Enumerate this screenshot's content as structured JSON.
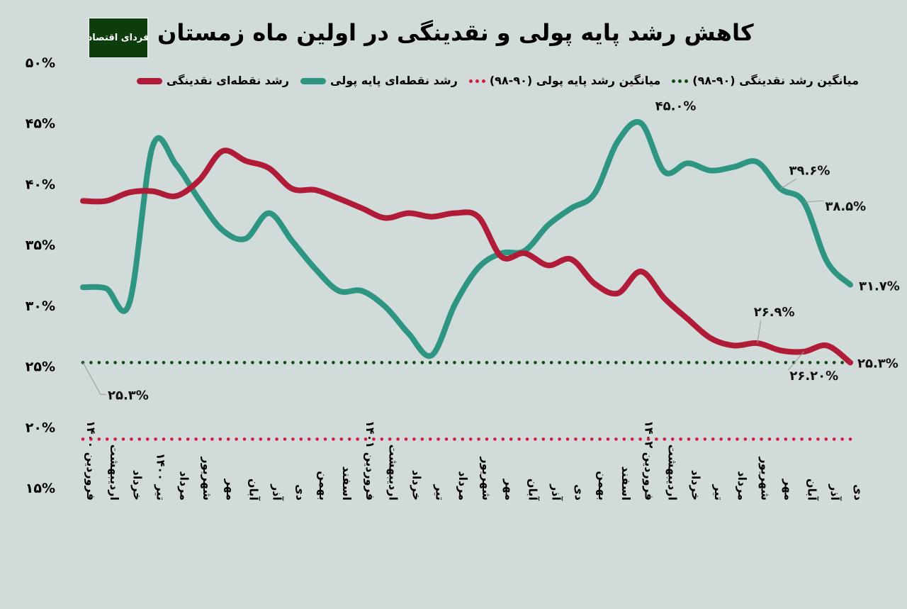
{
  "title": "کاهش رشد پایه پولی و نقدینگی در اولین ماه زمستان",
  "logo_text": "فردای اقتصاد",
  "legend": [
    {
      "label": "میانگین رشد نقدینگی (۹۰-۹۸)",
      "style": "dotted",
      "color": "#0f4a12"
    },
    {
      "label": "میانگین رشد پایه پولی (۹۰-۹۸)",
      "style": "dotted",
      "color": "#d41a3c"
    },
    {
      "label": "رشد نقطه‌ای پایه پولی",
      "style": "line",
      "color": "#2e9583"
    },
    {
      "label": "رشد نقطه‌ای نقدینگی",
      "style": "line",
      "color": "#b01c37"
    }
  ],
  "chart_data": {
    "type": "line",
    "title": "کاهش رشد پایه پولی و نقدینگی در اولین ماه زمستان",
    "ylim": [
      15,
      50
    ],
    "yticks": [
      15,
      20,
      25,
      30,
      35,
      40,
      45,
      50
    ],
    "ytick_labels": [
      "۱۵%",
      "۲۰%",
      "۲۵%",
      "۳۰%",
      "۳۵%",
      "۴۰%",
      "۴۵%",
      "۵۰%"
    ],
    "grid": false,
    "legend_position": "top",
    "categories": [
      "فروردین ۱۴۰۰",
      "اردیبهشت",
      "خرداد",
      "تیر ۱۴۰۰",
      "مرداد",
      "شهریور",
      "مهر",
      "آبان",
      "آذر",
      "دی",
      "بهمن",
      "اسفند",
      "فروردین ۱۴۰۱",
      "اردیبهشت",
      "خرداد",
      "تیر",
      "مرداد",
      "شهریور",
      "مهر",
      "آبان",
      "آذر",
      "دی",
      "بهمن",
      "اسفند",
      "فروردین ۱۴۰۲",
      "اردیبهشت",
      "خرداد",
      "تیر",
      "مرداد",
      "شهریور",
      "مهر",
      "آبان",
      "آذر",
      "دی"
    ],
    "series": [
      {
        "name": "رشد نقطه‌ای نقدینگی",
        "color": "#b01c37",
        "values": [
          38.6,
          38.6,
          39.3,
          39.4,
          39.0,
          40.3,
          42.7,
          41.9,
          41.3,
          39.6,
          39.5,
          38.8,
          38.0,
          37.2,
          37.6,
          37.3,
          37.6,
          37.3,
          34.0,
          34.3,
          33.3,
          33.8,
          31.8,
          31.0,
          32.8,
          30.6,
          28.9,
          27.3,
          26.7,
          26.9,
          26.3,
          26.2,
          26.7,
          25.3
        ],
        "labels": [
          {
            "index": 29,
            "text": "۲۶.۹%"
          },
          {
            "index": 31,
            "text": "۲۶.۲۰%"
          },
          {
            "index": 33,
            "text": "۲۵.۳%"
          }
        ]
      },
      {
        "name": "رشد نقطه‌ای پایه پولی",
        "color": "#2e9583",
        "values": [
          31.5,
          31.4,
          30.2,
          43.1,
          41.6,
          38.7,
          36.2,
          35.5,
          37.6,
          35.3,
          33.0,
          31.2,
          31.2,
          29.9,
          27.7,
          25.9,
          30.1,
          33.1,
          34.3,
          34.5,
          36.6,
          38.0,
          39.2,
          43.5,
          45.0,
          41.0,
          41.7,
          41.1,
          41.4,
          41.8,
          39.6,
          38.5,
          33.6,
          31.7
        ],
        "labels": [
          {
            "index": 24,
            "text": "۴۵.۰%"
          },
          {
            "index": 30,
            "text": "۳۹.۶%"
          },
          {
            "index": 31,
            "text": "۳۸.۵%"
          },
          {
            "index": 33,
            "text": "۳۱.۷%"
          }
        ]
      },
      {
        "name": "میانگین رشد نقدینگی (۹۰-۹۸)",
        "color": "#0f4a12",
        "style": "dotted",
        "value": 25.3,
        "label": "۲۵.۳%"
      },
      {
        "name": "میانگین رشد پایه پولی (۹۰-۹۸)",
        "color": "#d41a3c",
        "style": "dotted",
        "value": 19.0
      }
    ]
  }
}
